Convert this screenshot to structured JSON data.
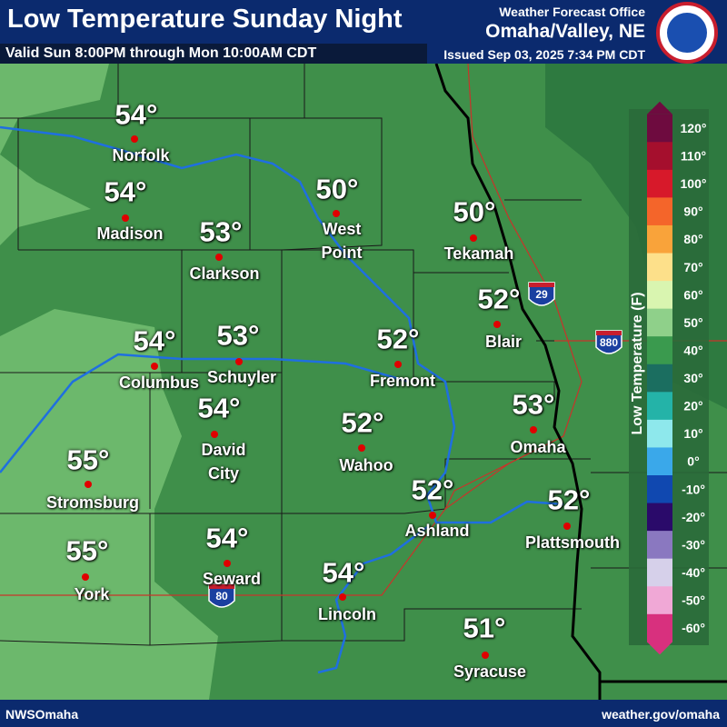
{
  "header": {
    "title": "Low Temperature Sunday Night",
    "valid": "Valid Sun 8:00PM through Mon 10:00AM CDT",
    "office": "Weather Forecast Office",
    "location": "Omaha/Valley, NE",
    "issued": "Issued Sep 03, 2025 7:34 PM CDT"
  },
  "cities": [
    {
      "name": "Norfolk",
      "temperature": "54°"
    },
    {
      "name": "Madison",
      "temperature": "54°"
    },
    {
      "name": "Clarkson",
      "temperature": "53°"
    },
    {
      "name": "West Point",
      "temperature": "50°"
    },
    {
      "name": "Tekamah",
      "temperature": "50°"
    },
    {
      "name": "Blair",
      "temperature": "52°"
    },
    {
      "name": "Columbus",
      "temperature": "54°"
    },
    {
      "name": "Schuyler",
      "temperature": "53°"
    },
    {
      "name": "Fremont",
      "temperature": "52°"
    },
    {
      "name": "David City",
      "temperature": "54°"
    },
    {
      "name": "Wahoo",
      "temperature": "52°"
    },
    {
      "name": "Omaha",
      "temperature": "53°"
    },
    {
      "name": "Stromsburg",
      "temperature": "55°"
    },
    {
      "name": "Ashland",
      "temperature": "52°"
    },
    {
      "name": "Plattsmouth",
      "temperature": "52°"
    },
    {
      "name": "York",
      "temperature": "55°"
    },
    {
      "name": "Seward",
      "temperature": "54°"
    },
    {
      "name": "Lincoln",
      "temperature": "54°"
    },
    {
      "name": "Syracuse",
      "temperature": "51°"
    }
  ],
  "interstates": [
    "29",
    "880",
    "80"
  ],
  "legend": {
    "title": "Low Temperature (F)",
    "labels": [
      "120°",
      "110°",
      "100°",
      "90°",
      "80°",
      "70°",
      "60°",
      "50°",
      "40°",
      "30°",
      "20°",
      "10°",
      "0°",
      "-10°",
      "-20°",
      "-30°",
      "-40°",
      "-50°",
      "-60°"
    ],
    "colors": [
      "#6e0b3f",
      "#a50f2d",
      "#d7192a",
      "#f4652a",
      "#f9a33a",
      "#fde08a",
      "#d9f5b0",
      "#8fd08a",
      "#3a9a4e",
      "#1b6e60",
      "#24b3a8",
      "#8ee8ec",
      "#3aa8ea",
      "#1048b0",
      "#2a0a6a",
      "#8a78c0",
      "#d6d0ea",
      "#f0a8d6",
      "#d8307e"
    ]
  },
  "footer": {
    "left": "NWSOmaha",
    "right": "weather.gov/omaha"
  }
}
